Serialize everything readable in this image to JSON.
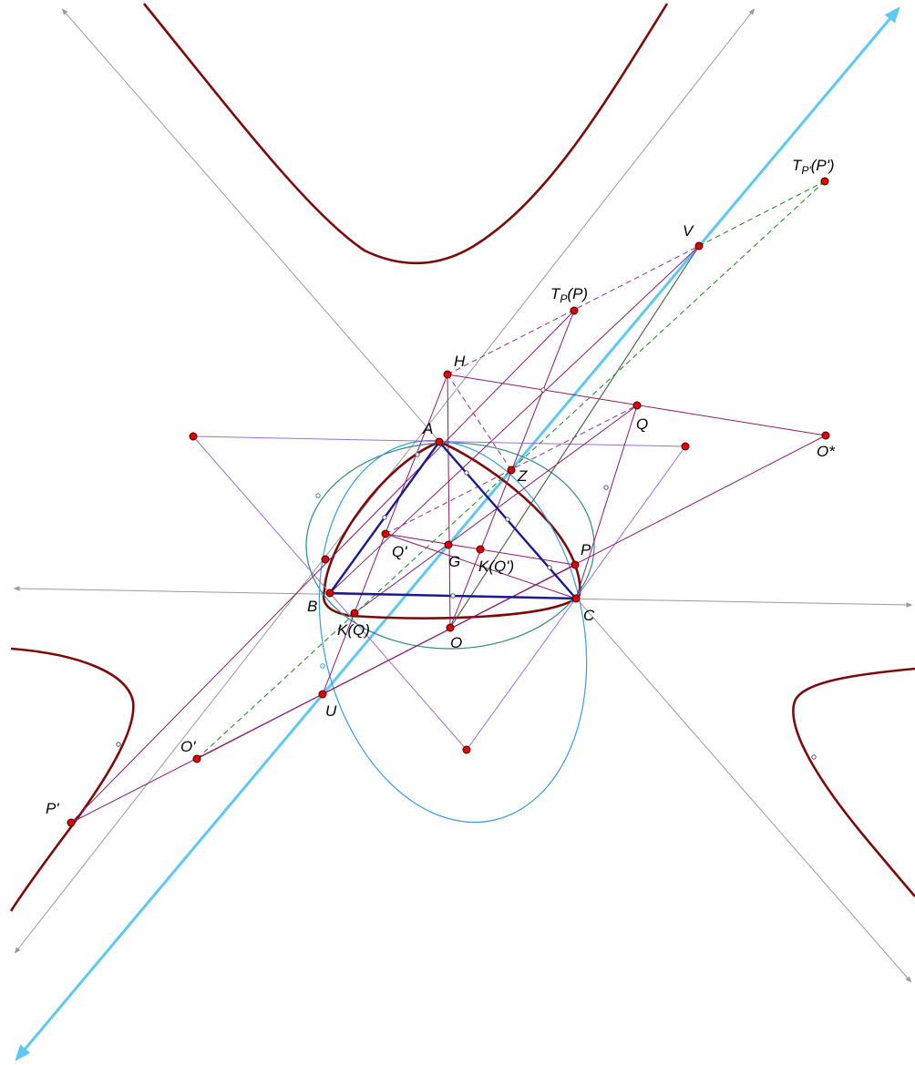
{
  "colors": {
    "background": "#ffffff",
    "cubic": "#7b0a0a",
    "axis_line": "#5ec8f2",
    "triangle": "#1a1a8c",
    "purple_lines": "#8b1a6b",
    "violet_lines": "#9a6fd6",
    "gray_lines": "#9a9a9a",
    "green_conic": "#2f8a80",
    "blue_conic": "#3b9ae0",
    "dashed_green": "#2e8b2e",
    "dashed_purple": "#a03c9a",
    "point_fill": "#e00000"
  },
  "labels": {
    "A": "A",
    "B": "B",
    "C": "C",
    "H": "H",
    "G": "G",
    "O": "O",
    "Z": "Z",
    "P": "P",
    "Q": "Q",
    "V": "V",
    "U": "U",
    "Qprime": "Q'",
    "Oprime": "O'",
    "Pprime": "P'",
    "Ostar": "O*",
    "KQ": "K(Q)",
    "KQprime": "K(Q')",
    "TP_main": "T",
    "TP_sub": "P",
    "TP_arg": "(P)",
    "TPp_main": "T",
    "TPp_sub": "P'",
    "TPp_arg": "(P')"
  }
}
